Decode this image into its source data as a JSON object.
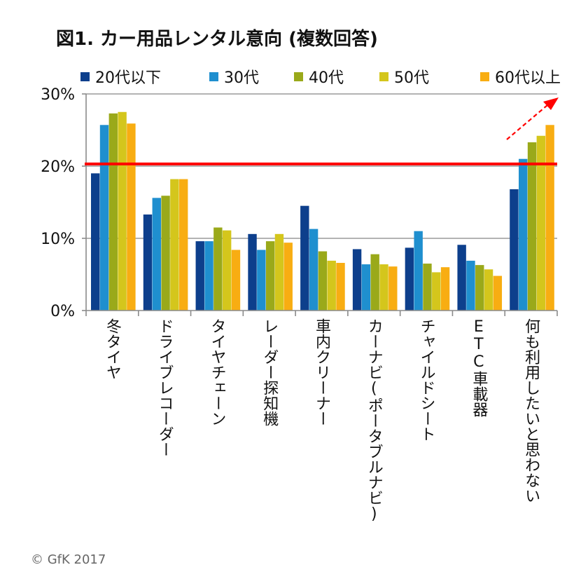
{
  "chart_data": {
    "type": "bar",
    "title": "図1. カー用品レンタル意向 (複数回答)",
    "categories": [
      "冬タイヤ",
      "ドライブレコーダー",
      "タイヤチェーン",
      "レーダー探知機",
      "車内クリーナー",
      "カーナビ(ポータブルナビ)",
      "チャイルドシート",
      "ETC車載器",
      "何も利用したいと思わない"
    ],
    "series": [
      {
        "name": "20代以下",
        "color": "#0d3f8c",
        "values": [
          19.0,
          13.3,
          9.6,
          10.6,
          14.5,
          8.5,
          8.7,
          9.1,
          16.8
        ]
      },
      {
        "name": "30代",
        "color": "#1f8fcf",
        "values": [
          25.7,
          15.6,
          9.6,
          8.4,
          11.3,
          6.4,
          11.0,
          6.9,
          21.0
        ]
      },
      {
        "name": "40代",
        "color": "#9aa91a",
        "values": [
          27.3,
          15.9,
          11.5,
          9.6,
          8.2,
          7.8,
          6.5,
          6.3,
          23.3
        ]
      },
      {
        "name": "50代",
        "color": "#d4c61c",
        "values": [
          27.5,
          18.2,
          11.1,
          10.6,
          6.9,
          6.4,
          5.3,
          5.7,
          24.2
        ]
      },
      {
        "name": "60代以上",
        "color": "#f8ad12",
        "values": [
          25.9,
          18.2,
          8.4,
          9.4,
          6.6,
          6.1,
          6.0,
          4.8,
          25.7
        ]
      }
    ],
    "ylim": [
      0,
      30
    ],
    "y_ticks": [
      "0%",
      "10%",
      "20%",
      "30%"
    ],
    "y_tick_values": [
      0,
      10,
      20,
      30
    ],
    "reference_line": {
      "value": 20.3,
      "color": "#ff0000"
    },
    "trend_arrow": {
      "color": "#ff0000",
      "style": "dashed"
    },
    "grid": true,
    "legend": "top"
  },
  "copyright": "© GfK 2017"
}
